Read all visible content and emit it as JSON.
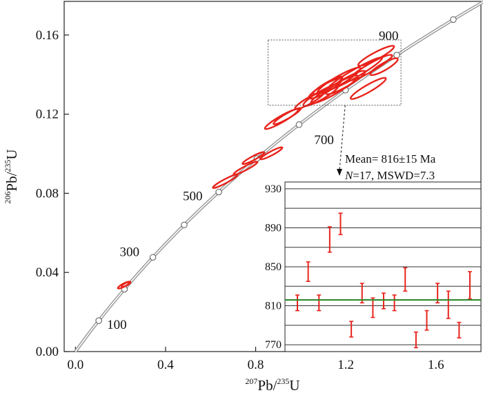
{
  "chart_data": [
    {
      "type": "scatter",
      "subtype": "concordia",
      "xlabel": "207Pb/235U",
      "ylabel": "206Pb/235U",
      "xlabel_parts": {
        "pre": "207",
        "base": "Pb/",
        "pre2": "235",
        "base2": "U"
      },
      "ylabel_parts": {
        "pre": "206",
        "base": "Pb/",
        "pre2": "235",
        "base2": "U"
      },
      "xlim": [
        -0.05,
        1.8
      ],
      "ylim": [
        0.0,
        0.177
      ],
      "x_ticks": [
        "0.0",
        "0.4",
        "0.8",
        "1.2",
        "1.6"
      ],
      "y_ticks": [
        "0.00",
        "0.04",
        "0.08",
        "0.12",
        "0.16"
      ],
      "concordia_ages_Ma": [
        100,
        200,
        300,
        400,
        500,
        600,
        700,
        800,
        900,
        1000
      ],
      "concordia_age_labels": [
        "100",
        "300",
        "500",
        "700",
        "900"
      ],
      "concordia_color": "#9a9a9a",
      "ellipse_color": "#e8231b",
      "ellipses": [
        {
          "x": 0.215,
          "y": 0.0336,
          "rx": 0.03,
          "ry": 0.0008,
          "angle": 28
        },
        {
          "x": 0.225,
          "y": 0.034,
          "rx": 0.022,
          "ry": 0.0007,
          "angle": 28
        },
        {
          "x": 0.665,
          "y": 0.0861,
          "rx": 0.062,
          "ry": 0.001,
          "angle": 28
        },
        {
          "x": 0.755,
          "y": 0.0927,
          "rx": 0.06,
          "ry": 0.001,
          "angle": 28
        },
        {
          "x": 0.79,
          "y": 0.0978,
          "rx": 0.055,
          "ry": 0.001,
          "angle": 28
        },
        {
          "x": 0.87,
          "y": 0.1002,
          "rx": 0.055,
          "ry": 0.001,
          "angle": 28
        },
        {
          "x": 0.915,
          "y": 0.1175,
          "rx": 0.085,
          "ry": 0.0016,
          "angle": 30
        },
        {
          "x": 0.94,
          "y": 0.119,
          "rx": 0.07,
          "ry": 0.0013,
          "angle": 30
        },
        {
          "x": 1.04,
          "y": 0.127,
          "rx": 0.075,
          "ry": 0.0016,
          "angle": 30
        },
        {
          "x": 1.09,
          "y": 0.1295,
          "rx": 0.09,
          "ry": 0.002,
          "angle": 30
        },
        {
          "x": 1.11,
          "y": 0.133,
          "rx": 0.085,
          "ry": 0.002,
          "angle": 30
        },
        {
          "x": 1.12,
          "y": 0.1345,
          "rx": 0.075,
          "ry": 0.0016,
          "angle": 30
        },
        {
          "x": 1.15,
          "y": 0.1325,
          "rx": 0.12,
          "ry": 0.0022,
          "angle": 30
        },
        {
          "x": 1.17,
          "y": 0.137,
          "rx": 0.11,
          "ry": 0.0022,
          "angle": 30
        },
        {
          "x": 1.2,
          "y": 0.136,
          "rx": 0.1,
          "ry": 0.002,
          "angle": 30
        },
        {
          "x": 1.24,
          "y": 0.1405,
          "rx": 0.14,
          "ry": 0.002,
          "angle": 30
        },
        {
          "x": 1.3,
          "y": 0.133,
          "rx": 0.09,
          "ry": 0.0018,
          "angle": 30
        },
        {
          "x": 1.31,
          "y": 0.1435,
          "rx": 0.11,
          "ry": 0.002,
          "angle": 30
        },
        {
          "x": 1.335,
          "y": 0.1495,
          "rx": 0.09,
          "ry": 0.0018,
          "angle": 28
        },
        {
          "x": 1.37,
          "y": 0.144,
          "rx": 0.07,
          "ry": 0.0018,
          "angle": 30
        }
      ],
      "zoom_box": {
        "x0": 0.855,
        "x1": 1.445,
        "y0": 0.1245,
        "y1": 0.1575
      },
      "stats": {
        "mean_prefix": "Mean= 816",
        "pm": "±",
        "mean_suffix": "15 Ma",
        "n_label": "N",
        "n_value": "=17, MSWD=7.3"
      }
    },
    {
      "type": "scatter",
      "subtype": "weighted-mean-age-inset",
      "ylim": [
        763,
        937
      ],
      "y_ticks": [
        "930",
        "890",
        "850",
        "810",
        "770"
      ],
      "y_tick_values": [
        930,
        890,
        850,
        810,
        770
      ],
      "gridlines": [
        930,
        910,
        890,
        870,
        850,
        830,
        810,
        790,
        770
      ],
      "mean_line": 816,
      "mean_line_color": "#2e8b2e",
      "error_bar_color": "#e8231b",
      "points": [
        {
          "value": 813,
          "err": 8
        },
        {
          "value": 845,
          "err": 10
        },
        {
          "value": 813,
          "err": 8
        },
        {
          "value": 878,
          "err": 13
        },
        {
          "value": 894,
          "err": 11
        },
        {
          "value": 786,
          "err": 8
        },
        {
          "value": 823,
          "err": 10
        },
        {
          "value": 808,
          "err": 10
        },
        {
          "value": 815,
          "err": 8
        },
        {
          "value": 813,
          "err": 8
        },
        {
          "value": 837,
          "err": 12
        },
        {
          "value": 775,
          "err": 8
        },
        {
          "value": 795,
          "err": 10
        },
        {
          "value": 823,
          "err": 10
        },
        {
          "value": 811,
          "err": 14
        },
        {
          "value": 785,
          "err": 8
        },
        {
          "value": 831,
          "err": 14
        }
      ]
    }
  ]
}
